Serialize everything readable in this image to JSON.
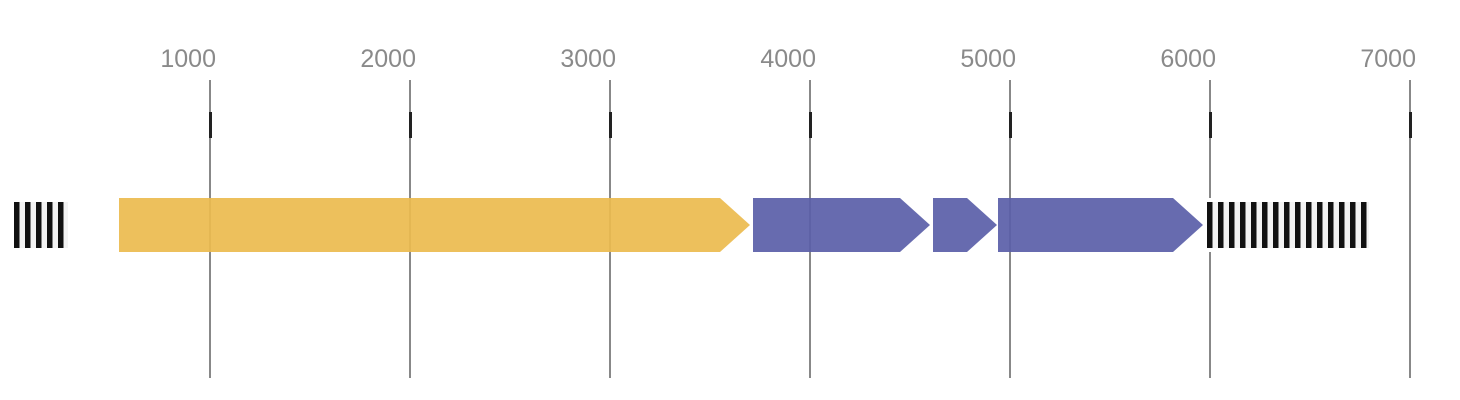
{
  "chart_data": {
    "type": "gene_arrow_map",
    "description": "Horizontal genome map with a top coordinate ruler, directional gene arrows and hatched terminal regions",
    "axis": {
      "orientation": "top",
      "range": [
        0,
        7250
      ],
      "tick_values": [
        1000,
        2000,
        3000,
        4000,
        5000,
        6000,
        7000
      ],
      "tick_labels": [
        "1000",
        "2000",
        "3000",
        "4000",
        "5000",
        "6000",
        "7000"
      ],
      "gridlines": true
    },
    "features": [
      {
        "name": "left-hatched-region",
        "shape": "hatched_box",
        "start": 0,
        "end": 310
      },
      {
        "name": "gene-arrow-yellow",
        "shape": "arrow",
        "direction": "right",
        "start": 545,
        "end": 3700,
        "color": "#ECBB4E"
      },
      {
        "name": "gene-arrow-purple-1",
        "shape": "arrow",
        "direction": "right",
        "start": 3715,
        "end": 4600,
        "color": "#5A5EA8"
      },
      {
        "name": "gene-arrow-purple-2",
        "shape": "arrow",
        "direction": "right",
        "start": 4615,
        "end": 4935,
        "color": "#5A5EA8"
      },
      {
        "name": "gene-arrow-purple-3",
        "shape": "arrow",
        "direction": "right",
        "start": 4940,
        "end": 5965,
        "color": "#5A5EA8"
      },
      {
        "name": "right-hatched-region",
        "shape": "hatched_box",
        "start": 5965,
        "end": 6815
      }
    ],
    "colors": {
      "gene_yellow": "#ECBB4E",
      "gene_purple": "#5A5EA8",
      "gridline": "#888888",
      "tick_dash": "#222222",
      "tick_label": "#8A8A8A",
      "hatch_dark": "#111111",
      "hatch_light": "#F3F3F3",
      "hatch_border": "#FFFFFF",
      "background": "#FFFFFF"
    }
  }
}
